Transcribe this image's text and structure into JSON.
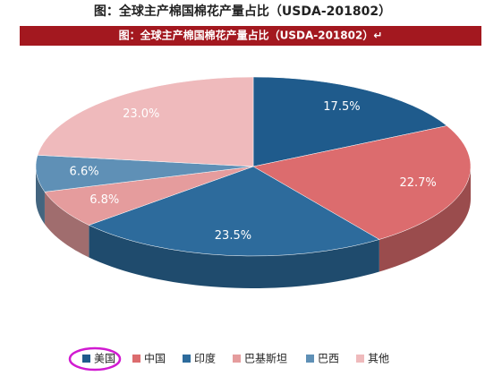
{
  "chart_data": {
    "type": "pie",
    "title": "图：全球主产棉国棉花产量占比（USDA-201802）",
    "subtitle": "图：全球主产棉国棉花产量占比（USDA-201802）↵",
    "categories": [
      "美国",
      "中国",
      "印度",
      "巴基斯坦",
      "巴西",
      "其他"
    ],
    "values": [
      17.5,
      22.7,
      23.5,
      6.8,
      6.6,
      23.0
    ],
    "value_labels": [
      "17.5%",
      "22.7%",
      "23.5%",
      "6.8%",
      "6.6%",
      "23.0%"
    ],
    "colors": [
      "#1f5b8c",
      "#dc6c6e",
      "#2d6b9c",
      "#e59c9d",
      "#5f90b6",
      "#efbabc"
    ]
  }
}
